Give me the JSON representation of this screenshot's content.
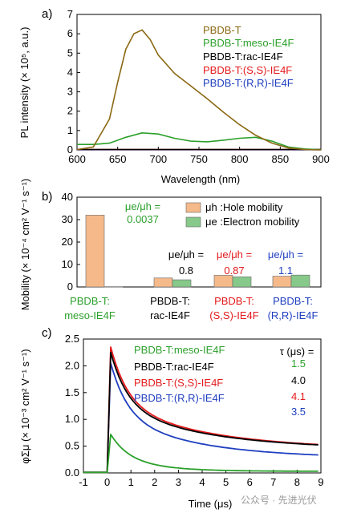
{
  "chart_data": [
    {
      "panel": "a)",
      "type": "line",
      "xlabel": "Wavelength (nm)",
      "ylabel": "PL intensity (× 10⁵, a.u.)",
      "xlim": [
        600,
        900
      ],
      "ylim": [
        0,
        7
      ],
      "xticks": [
        "600",
        "650",
        "700",
        "750",
        "800",
        "850",
        "900"
      ],
      "yticks": [
        "0",
        "1",
        "2",
        "3",
        "4",
        "5",
        "6",
        "7"
      ],
      "legend": [
        "PBDB-T",
        "PBDB-T:meso-IE4F",
        "PBDB-T:rac-IE4F",
        "PBDB-T:(S,S)-IE4F",
        "PBDB-T:(R,R)-IE4F"
      ],
      "colors": [
        "#8B6914",
        "#2ca02c",
        "#000000",
        "#e41a1c",
        "#1f3fbf"
      ],
      "series": [
        {
          "name": "PBDB-T",
          "x": [
            600,
            620,
            640,
            650,
            660,
            670,
            680,
            690,
            700,
            720,
            740,
            760,
            780,
            800,
            820,
            840,
            860,
            880,
            900
          ],
          "y": [
            0.02,
            0.15,
            1.6,
            3.5,
            5.2,
            6.0,
            6.2,
            5.7,
            4.9,
            3.95,
            3.3,
            2.65,
            1.95,
            1.3,
            0.75,
            0.35,
            0.1,
            0.02,
            0
          ]
        },
        {
          "name": "PBDB-T:meso-IE4F",
          "x": [
            600,
            620,
            640,
            660,
            680,
            700,
            720,
            740,
            760,
            780,
            800,
            820,
            840,
            860,
            880,
            900
          ],
          "y": [
            0.28,
            0.28,
            0.35,
            0.65,
            0.88,
            0.82,
            0.6,
            0.45,
            0.42,
            0.5,
            0.6,
            0.65,
            0.45,
            0.15,
            0.05,
            0.01
          ]
        },
        {
          "name": "PBDB-T:rac-IE4F",
          "x": [
            600,
            900
          ],
          "y": [
            0.02,
            0.02
          ]
        },
        {
          "name": "PBDB-T:(S,S)-IE4F",
          "x": [
            600,
            900
          ],
          "y": [
            0.02,
            0.02
          ]
        },
        {
          "name": "PBDB-T:(R,R)-IE4F",
          "x": [
            600,
            900
          ],
          "y": [
            0.01,
            0.01
          ]
        }
      ]
    },
    {
      "panel": "b)",
      "type": "bar",
      "ylabel": "Mobility (× 10⁻⁴ cm² V⁻¹ s⁻¹)",
      "ylim": [
        0,
        40
      ],
      "yticks": [
        "0",
        "10",
        "20",
        "30",
        "40"
      ],
      "categories": [
        {
          "line1": "PBDB-T:",
          "line2": "meso-IE4F",
          "color": "#2ca02c"
        },
        {
          "line1": "PBDB-T:",
          "line2": "rac-IE4F",
          "color": "#000000"
        },
        {
          "line1": "PBDB-T:",
          "line2": "(S,S)-IE4F",
          "color": "#e41a1c"
        },
        {
          "line1": "PBDB-T:",
          "line2": "(R,R)-IE4F",
          "color": "#1f3fbf"
        }
      ],
      "series": [
        {
          "name": "μh :Hole mobility",
          "color": "#f5b98a",
          "values": [
            32,
            4,
            5.2,
            4.8
          ]
        },
        {
          "name": "μe :Electron mobility",
          "color": "#86c98a",
          "values": [
            0.12,
            3.2,
            4.5,
            5.3
          ]
        }
      ],
      "ratio_label": "μe/μh =",
      "ratios": [
        "0.0037",
        "0.8",
        "0.87",
        "1.1"
      ]
    },
    {
      "panel": "c)",
      "type": "line",
      "xlabel": "Time (μs)",
      "ylabel": "φΣμ (× 10⁻³ cm² V⁻¹ s⁻¹)",
      "xlim": [
        -1,
        9
      ],
      "ylim": [
        0,
        2.5
      ],
      "xticks": [
        "-1",
        "0",
        "1",
        "2",
        "3",
        "4",
        "5",
        "6",
        "7",
        "8",
        "9"
      ],
      "yticks": [
        "0.0",
        "0.5",
        "1.0",
        "1.5",
        "2.0",
        "2.5"
      ],
      "tau_header": "τ (μs) =",
      "series": [
        {
          "name": "PBDB-T:meso-IE4F",
          "color": "#2ca02c",
          "tau": "1.5",
          "peak": 0.72,
          "tail": 0.03
        },
        {
          "name": "PBDB-T:rac-IE4F",
          "color": "#000000",
          "tau": "4.0",
          "peak": 2.25,
          "tail": 0.45
        },
        {
          "name": "PBDB-T:(S,S)-IE4F",
          "color": "#e41a1c",
          "tau": "4.1",
          "peak": 2.35,
          "tail": 0.45
        },
        {
          "name": "PBDB-T:(R,R)-IE4F",
          "color": "#1f3fbf",
          "tau": "3.5",
          "peak": 2.05,
          "tail": 0.28
        }
      ]
    }
  ],
  "watermark": "公众号 · 先进光伏"
}
